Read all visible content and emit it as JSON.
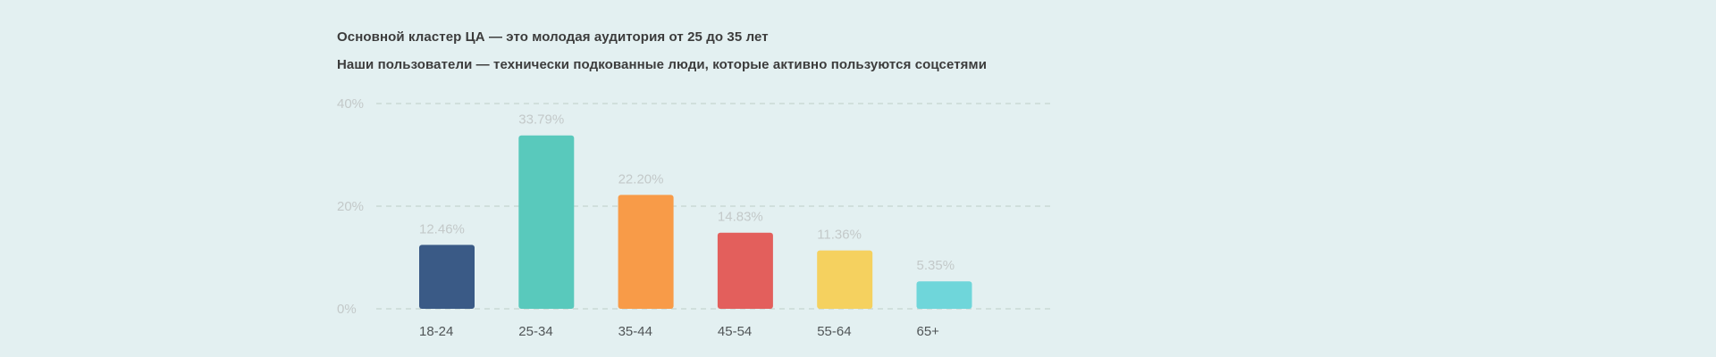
{
  "headlines": {
    "line1": "Основной кластер ЦА — это молодая аудитория от 25 до 35 лет",
    "line2": "Наши пользователи — технически подкованные люди, которые активно пользуются соцсетями"
  },
  "chart_data": {
    "type": "bar",
    "title": "",
    "xlabel": "",
    "ylabel": "",
    "categories": [
      "18-24",
      "25-34",
      "35-44",
      "45-54",
      "55-64",
      "65+"
    ],
    "values": [
      12.46,
      33.79,
      22.2,
      14.83,
      11.36,
      5.35
    ],
    "value_labels": [
      "12.46%",
      "33.79%",
      "22.20%",
      "14.83%",
      "11.36%",
      "5.35%"
    ],
    "colors": [
      "#3a5a86",
      "#59c9bc",
      "#f89b48",
      "#e35f5c",
      "#f5d15f",
      "#6fd6da"
    ],
    "yticks": [
      0,
      20,
      40
    ],
    "ytick_labels": [
      "0%",
      "20%",
      "40%"
    ],
    "ylim": [
      0,
      40
    ],
    "grid": true,
    "legend": "none"
  }
}
